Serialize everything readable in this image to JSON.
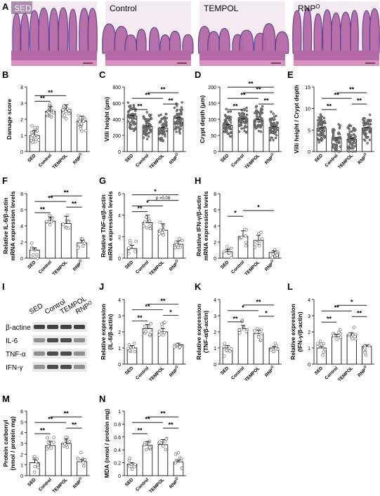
{
  "figure": {
    "panels_letters": [
      "A",
      "B",
      "C",
      "D",
      "E",
      "F",
      "G",
      "H",
      "I",
      "J",
      "K",
      "L",
      "M",
      "N"
    ],
    "histology_labels": [
      "SED",
      "Control",
      "TEMPOL",
      "RNP"
    ],
    "histology_label_superscript": "O",
    "histology_colors": {
      "tissue": "#b56aa8",
      "lumen": "#f4eaf1",
      "nuclei": "#5a3d8a"
    },
    "bar_color": "#ffffff",
    "bar_edge_color": "#000000",
    "dot_color": "#7f7f7f",
    "western_blot": {
      "lane_labels": [
        "SED",
        "Control",
        "TEMPOL",
        "RNP"
      ],
      "lane_label_superscript": "O",
      "rows": [
        "β-actine",
        "IL-6",
        "TNF-α",
        "IFN-γ"
      ]
    }
  },
  "chart_data": [
    {
      "panel": "B",
      "type": "bar",
      "title": "",
      "xlabel": "",
      "ylabel": "Damage score",
      "categories": [
        "SED",
        "Control",
        "TEMPOL",
        "RNP"
      ],
      "values": [
        1.0,
        2.5,
        2.6,
        1.9
      ],
      "errors": [
        0.3,
        0.3,
        0.3,
        0.3
      ],
      "ylim": [
        0,
        4
      ],
      "yticks": [
        0,
        1,
        2,
        3,
        4
      ],
      "significance": [
        {
          "from": 0,
          "to": 1,
          "label": "**"
        },
        {
          "from": 0,
          "to": 2,
          "label": "**"
        }
      ]
    },
    {
      "panel": "C",
      "type": "bar",
      "title": "",
      "xlabel": "",
      "ylabel": "Villi height (μm)",
      "categories": [
        "SED",
        "Control",
        "TEMPOL",
        "RNP"
      ],
      "values": [
        440,
        310,
        290,
        410
      ],
      "errors": [
        10,
        10,
        10,
        10
      ],
      "ylim": [
        0,
        800
      ],
      "yticks": [
        0,
        200,
        400,
        600,
        800
      ],
      "significance": [
        {
          "from": 0,
          "to": 1,
          "label": "**"
        },
        {
          "from": 0,
          "to": 2,
          "label": "**"
        },
        {
          "from": 1,
          "to": 3,
          "label": "**"
        },
        {
          "from": 2,
          "to": 3,
          "label": "**"
        }
      ]
    },
    {
      "panel": "D",
      "type": "bar",
      "title": "",
      "xlabel": "",
      "ylabel": "Crypt depth (μm)",
      "categories": [
        "SED",
        "Control",
        "TEMPOL",
        "RNP"
      ],
      "values": [
        82,
        100,
        98,
        75
      ],
      "errors": [
        2,
        2,
        2,
        2
      ],
      "ylim": [
        0,
        200
      ],
      "yticks": [
        0,
        50,
        100,
        150,
        200
      ],
      "significance": [
        {
          "from": 0,
          "to": 1,
          "label": "**"
        },
        {
          "from": 0,
          "to": 2,
          "label": "**"
        },
        {
          "from": 1,
          "to": 3,
          "label": "**"
        },
        {
          "from": 2,
          "to": 3,
          "label": "**"
        },
        {
          "from": 0,
          "to": 3,
          "label": "**"
        }
      ]
    },
    {
      "panel": "E",
      "type": "bar",
      "title": "",
      "xlabel": "",
      "ylabel": "Villi height / Crypt depth",
      "categories": [
        "SED",
        "Control",
        "TEMPOL",
        "RNP"
      ],
      "values": [
        5.4,
        3.1,
        2.9,
        5.5
      ],
      "errors": [
        0.15,
        0.15,
        0.15,
        0.15
      ],
      "ylim": [
        0,
        15
      ],
      "yticks": [
        0,
        5,
        10,
        15
      ],
      "significance": [
        {
          "from": 0,
          "to": 1,
          "label": "**"
        },
        {
          "from": 0,
          "to": 2,
          "label": "**"
        },
        {
          "from": 1,
          "to": 3,
          "label": "**"
        },
        {
          "from": 2,
          "to": 3,
          "label": "**"
        }
      ]
    },
    {
      "panel": "F",
      "type": "bar",
      "title": "",
      "xlabel": "",
      "ylabel": "Relative IL-6/β-actin mRNA expression levels",
      "categories": [
        "SED",
        "Control",
        "TEMPOL",
        "RNP"
      ],
      "values": [
        1.0,
        4.6,
        4.3,
        1.9
      ],
      "errors": [
        0.3,
        0.5,
        0.9,
        0.3
      ],
      "ylim": [
        0,
        8
      ],
      "yticks": [
        0,
        2,
        4,
        6,
        8
      ],
      "significance": [
        {
          "from": 0,
          "to": 1,
          "label": "**"
        },
        {
          "from": 0,
          "to": 2,
          "label": "**"
        },
        {
          "from": 1,
          "to": 3,
          "label": "**"
        },
        {
          "from": 2,
          "to": 3,
          "label": "**"
        }
      ]
    },
    {
      "panel": "G",
      "type": "bar",
      "title": "",
      "xlabel": "",
      "ylabel": "Relative TNF-α/β-actin mRNA expression levels",
      "categories": [
        "SED",
        "Control",
        "TEMPOL",
        "RNP"
      ],
      "values": [
        0.9,
        3.3,
        2.6,
        1.3
      ],
      "errors": [
        0.3,
        0.7,
        0.6,
        0.3
      ],
      "ylim": [
        0,
        6
      ],
      "yticks": [
        0,
        2,
        4,
        6
      ],
      "significance": [
        {
          "from": 0,
          "to": 1,
          "label": "**"
        },
        {
          "from": 0,
          "to": 2,
          "label": "*"
        },
        {
          "from": 0,
          "to": 3,
          "label": "*"
        },
        {
          "from": 1,
          "to": 3,
          "label": "p =0.08"
        }
      ]
    },
    {
      "panel": "H",
      "type": "bar",
      "title": "",
      "xlabel": "",
      "ylabel": "Relative IFN-γ/β-actin mRNA expression levels",
      "categories": [
        "SED",
        "Control",
        "TEMPOL",
        "RNP"
      ],
      "values": [
        0.8,
        2.7,
        2.2,
        0.7
      ],
      "errors": [
        0.3,
        0.7,
        0.6,
        0.2
      ],
      "ylim": [
        0,
        8
      ],
      "yticks": [
        0,
        2,
        4,
        6,
        8
      ],
      "significance": [
        {
          "from": 0,
          "to": 1,
          "label": "*"
        },
        {
          "from": 1,
          "to": 3,
          "label": "*"
        }
      ]
    },
    {
      "panel": "J",
      "type": "bar",
      "title": "",
      "xlabel": "",
      "ylabel": "Relative expression (IL-6/β-actin)",
      "categories": [
        "SED",
        "Control",
        "TEMPOL",
        "RNP"
      ],
      "values": [
        1.0,
        2.2,
        2.0,
        1.2
      ],
      "errors": [
        0.15,
        0.25,
        0.2,
        0.1
      ],
      "ylim": [
        0,
        4
      ],
      "yticks": [
        0,
        1,
        2,
        3,
        4
      ],
      "significance": [
        {
          "from": 0,
          "to": 1,
          "label": "**"
        },
        {
          "from": 0,
          "to": 2,
          "label": "**"
        },
        {
          "from": 1,
          "to": 3,
          "label": "**"
        },
        {
          "from": 2,
          "to": 3,
          "label": "*"
        }
      ]
    },
    {
      "panel": "K",
      "type": "bar",
      "title": "",
      "xlabel": "",
      "ylabel": "Relative expression (TNF-α/β-actin)",
      "categories": [
        "SED",
        "Control",
        "TEMPOL",
        "RNP"
      ],
      "values": [
        1.0,
        2.2,
        1.9,
        1.0
      ],
      "errors": [
        0.15,
        0.2,
        0.2,
        0.1
      ],
      "ylim": [
        0,
        4
      ],
      "yticks": [
        0,
        1,
        2,
        3,
        4
      ],
      "significance": [
        {
          "from": 0,
          "to": 1,
          "label": "**"
        },
        {
          "from": 0,
          "to": 2,
          "label": "*"
        },
        {
          "from": 1,
          "to": 3,
          "label": "**"
        },
        {
          "from": 2,
          "to": 3,
          "label": "*"
        }
      ]
    },
    {
      "panel": "L",
      "type": "bar",
      "title": "",
      "xlabel": "",
      "ylabel": "Relative expression (IFN-γ/β-actin)",
      "categories": [
        "SED",
        "Control",
        "TEMPOL",
        "RNP"
      ],
      "values": [
        1.0,
        1.7,
        1.8,
        1.1
      ],
      "errors": [
        0.1,
        0.15,
        0.15,
        0.08
      ],
      "ylim": [
        0,
        4
      ],
      "yticks": [
        0,
        1,
        2,
        3,
        4
      ],
      "significance": [
        {
          "from": 0,
          "to": 1,
          "label": "**"
        },
        {
          "from": 0,
          "to": 2,
          "label": "**"
        },
        {
          "from": 1,
          "to": 3,
          "label": "*"
        },
        {
          "from": 2,
          "to": 3,
          "label": "**"
        }
      ]
    },
    {
      "panel": "M",
      "type": "bar",
      "title": "",
      "xlabel": "",
      "ylabel": "Protein carbonyl (nmol / protein mg)",
      "categories": [
        "SED",
        "Control",
        "TEMPOL",
        "RNP"
      ],
      "values": [
        1.2,
        2.8,
        3.0,
        1.3
      ],
      "errors": [
        0.3,
        0.4,
        0.4,
        0.2
      ],
      "ylim": [
        0,
        6
      ],
      "yticks": [
        0,
        1,
        2,
        3,
        4,
        5,
        6
      ],
      "significance": [
        {
          "from": 0,
          "to": 1,
          "label": "**"
        },
        {
          "from": 0,
          "to": 2,
          "label": "**"
        },
        {
          "from": 1,
          "to": 3,
          "label": "**"
        },
        {
          "from": 2,
          "to": 3,
          "label": "**"
        }
      ]
    },
    {
      "panel": "N",
      "type": "bar",
      "title": "",
      "xlabel": "",
      "ylabel": "MDA (nmol / protein mg)",
      "categories": [
        "SED",
        "Control",
        "TEMPOL",
        "RNP"
      ],
      "values": [
        0.18,
        0.47,
        0.48,
        0.21
      ],
      "errors": [
        0.02,
        0.06,
        0.08,
        0.03
      ],
      "ylim": [
        0,
        1.0
      ],
      "yticks": [
        0,
        0.2,
        0.4,
        0.6,
        0.8,
        1.0
      ],
      "significance": [
        {
          "from": 0,
          "to": 1,
          "label": "**"
        },
        {
          "from": 0,
          "to": 2,
          "label": "**"
        },
        {
          "from": 1,
          "to": 3,
          "label": "**"
        },
        {
          "from": 2,
          "to": 3,
          "label": "**"
        }
      ]
    }
  ]
}
